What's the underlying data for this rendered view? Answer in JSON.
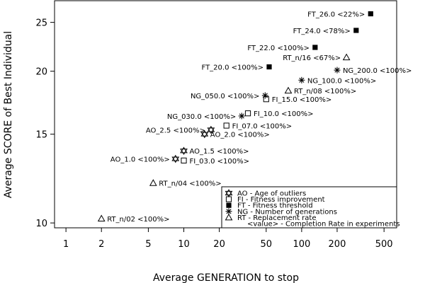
{
  "chart_data": {
    "type": "scatter",
    "xlabel": "Average GENERATION to stop",
    "ylabel": "Average SCORE of Best Individual",
    "x_scale": "log",
    "y_scale": "log",
    "xlim": [
      0.8,
      640
    ],
    "ylim": [
      9.78,
      27.6
    ],
    "x_ticks": [
      1,
      2,
      5,
      10,
      20,
      50,
      100,
      200,
      500
    ],
    "y_ticks": [
      10,
      15,
      20,
      25
    ],
    "grid": false,
    "legend_position": "bottom-right",
    "legend": [
      {
        "marker": "hourglass",
        "text": "AO - Age of outliers"
      },
      {
        "marker": "square-open",
        "text": "FI - Fitness improvement"
      },
      {
        "marker": "square-filled",
        "text": "FT - Fitness threshold"
      },
      {
        "marker": "asterisk",
        "text": "NG - Number of generations"
      },
      {
        "marker": "triangle-open",
        "text": "RT - Replacement rate"
      },
      {
        "marker": "none",
        "text": "<value> - Completion Rate in experiments"
      }
    ],
    "points": [
      {
        "marker": "square-filled",
        "x": 385,
        "y": 26.0,
        "label": "FT_26.0 <22%>"
      },
      {
        "marker": "square-filled",
        "x": 290,
        "y": 24.1,
        "label": "FT_24.0 <78%>"
      },
      {
        "marker": "square-filled",
        "x": 130,
        "y": 22.3,
        "label": "FT_22.0 <100%>"
      },
      {
        "marker": "square-filled",
        "x": 53,
        "y": 20.4,
        "label": "FT_20.0 <100%>"
      },
      {
        "marker": "triangle-open",
        "x": 240,
        "y": 21.3,
        "label": "RT_n/16 <67%>"
      },
      {
        "marker": "asterisk",
        "x": 200,
        "y": 20.1,
        "label": "NG_200.0 <100%>"
      },
      {
        "marker": "asterisk",
        "x": 100,
        "y": 19.2,
        "label": "NG_100.0 <100%>"
      },
      {
        "marker": "triangle-open",
        "x": 77,
        "y": 18.3,
        "label": "RT_n/08 <100%>"
      },
      {
        "marker": "asterisk",
        "x": 49,
        "y": 17.9,
        "label": "NG_050.0 <100%>"
      },
      {
        "marker": "square-open",
        "x": 50,
        "y": 17.6,
        "label": "FI_15.0 <100%>"
      },
      {
        "marker": "square-open",
        "x": 35,
        "y": 16.5,
        "label": "FI_10.0 <100%>"
      },
      {
        "marker": "asterisk",
        "x": 31,
        "y": 16.3,
        "label": "NG_030.0 <100%>"
      },
      {
        "marker": "square-open",
        "x": 23,
        "y": 15.6,
        "label": "FI_07.0 <100%>"
      },
      {
        "marker": "hourglass",
        "x": 17,
        "y": 15.3,
        "label": "AO_2.5 <100%>"
      },
      {
        "marker": "hourglass",
        "x": 15,
        "y": 15.0,
        "label": "AO_2.0 <100%>"
      },
      {
        "marker": "hourglass",
        "x": 10,
        "y": 13.9,
        "label": "AO_1.5 <100%>"
      },
      {
        "marker": "hourglass",
        "x": 8.5,
        "y": 13.4,
        "label": "AO_1.0 <100%>"
      },
      {
        "marker": "square-open",
        "x": 10,
        "y": 13.3,
        "label": "FI_03.0 <100%>"
      },
      {
        "marker": "triangle-open",
        "x": 5.5,
        "y": 12.0,
        "label": "RT_n/04 <100%>"
      },
      {
        "marker": "triangle-open",
        "x": 2.0,
        "y": 10.2,
        "label": "RT_n/02 <100%>"
      }
    ]
  }
}
